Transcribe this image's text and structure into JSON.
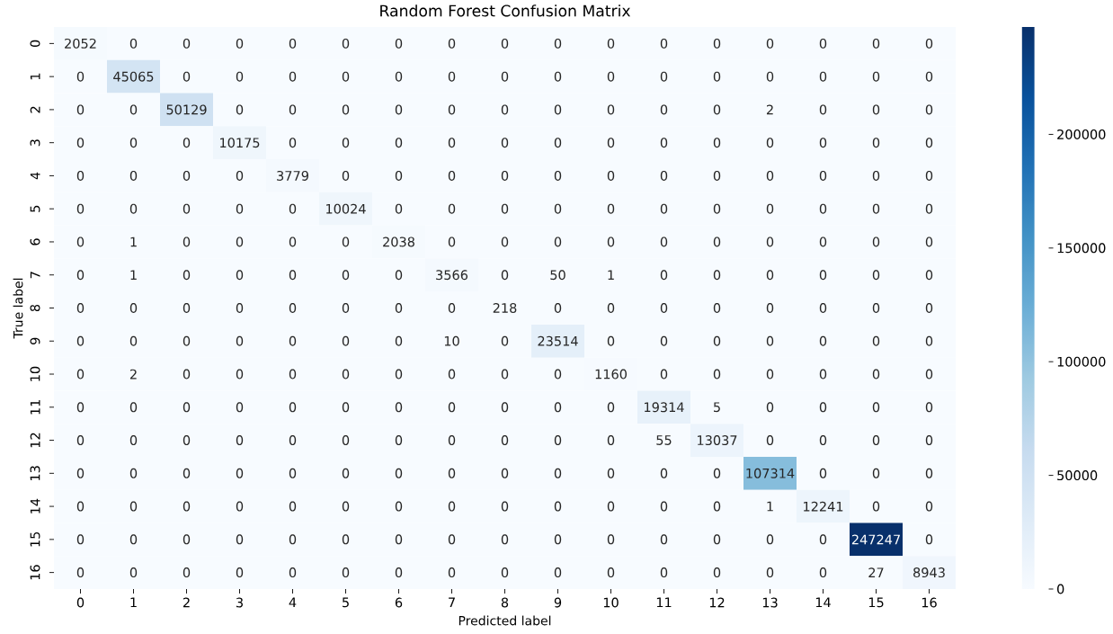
{
  "chart_data": {
    "type": "heatmap",
    "title": "Random Forest Confusion Matrix",
    "xlabel": "Predicted label",
    "ylabel": "True label",
    "categories": [
      "0",
      "1",
      "2",
      "3",
      "4",
      "5",
      "6",
      "7",
      "8",
      "9",
      "10",
      "11",
      "12",
      "13",
      "14",
      "15",
      "16"
    ],
    "y_categories": [
      "0",
      "1",
      "2",
      "3",
      "4",
      "5",
      "6",
      "7",
      "8",
      "9",
      "10",
      "11",
      "12",
      "13",
      "14",
      "15",
      "16"
    ],
    "cells": [
      [
        2052,
        0,
        0,
        0,
        0,
        0,
        0,
        0,
        0,
        0,
        0,
        0,
        0,
        0,
        0,
        0,
        0
      ],
      [
        0,
        45065,
        0,
        0,
        0,
        0,
        0,
        0,
        0,
        0,
        0,
        0,
        0,
        0,
        0,
        0,
        0
      ],
      [
        0,
        0,
        50129,
        0,
        0,
        0,
        0,
        0,
        0,
        0,
        0,
        0,
        0,
        2,
        0,
        0,
        0
      ],
      [
        0,
        0,
        0,
        10175,
        0,
        0,
        0,
        0,
        0,
        0,
        0,
        0,
        0,
        0,
        0,
        0,
        0
      ],
      [
        0,
        0,
        0,
        0,
        3779,
        0,
        0,
        0,
        0,
        0,
        0,
        0,
        0,
        0,
        0,
        0,
        0
      ],
      [
        0,
        0,
        0,
        0,
        0,
        10024,
        0,
        0,
        0,
        0,
        0,
        0,
        0,
        0,
        0,
        0,
        0
      ],
      [
        0,
        1,
        0,
        0,
        0,
        0,
        2038,
        0,
        0,
        0,
        0,
        0,
        0,
        0,
        0,
        0,
        0
      ],
      [
        0,
        1,
        0,
        0,
        0,
        0,
        0,
        3566,
        0,
        50,
        1,
        0,
        0,
        0,
        0,
        0,
        0
      ],
      [
        0,
        0,
        0,
        0,
        0,
        0,
        0,
        0,
        218,
        0,
        0,
        0,
        0,
        0,
        0,
        0,
        0
      ],
      [
        0,
        0,
        0,
        0,
        0,
        0,
        0,
        10,
        0,
        23514,
        0,
        0,
        0,
        0,
        0,
        0,
        0
      ],
      [
        0,
        2,
        0,
        0,
        0,
        0,
        0,
        0,
        0,
        0,
        1160,
        0,
        0,
        0,
        0,
        0,
        0
      ],
      [
        0,
        0,
        0,
        0,
        0,
        0,
        0,
        0,
        0,
        0,
        0,
        19314,
        5,
        0,
        0,
        0,
        0
      ],
      [
        0,
        0,
        0,
        0,
        0,
        0,
        0,
        0,
        0,
        0,
        0,
        55,
        13037,
        0,
        0,
        0,
        0
      ],
      [
        0,
        0,
        0,
        0,
        0,
        0,
        0,
        0,
        0,
        0,
        0,
        0,
        0,
        107314,
        0,
        0,
        0
      ],
      [
        0,
        0,
        0,
        0,
        0,
        0,
        0,
        0,
        0,
        0,
        0,
        0,
        0,
        1,
        12241,
        0,
        0
      ],
      [
        0,
        0,
        0,
        0,
        0,
        0,
        0,
        0,
        0,
        0,
        0,
        0,
        0,
        0,
        0,
        247247,
        0
      ],
      [
        0,
        0,
        0,
        0,
        0,
        0,
        0,
        0,
        0,
        0,
        0,
        0,
        0,
        0,
        0,
        27,
        8943
      ]
    ],
    "clim": [
      0,
      247247
    ],
    "cticks": [
      0,
      50000,
      100000,
      150000,
      200000
    ],
    "data_labels": true
  }
}
